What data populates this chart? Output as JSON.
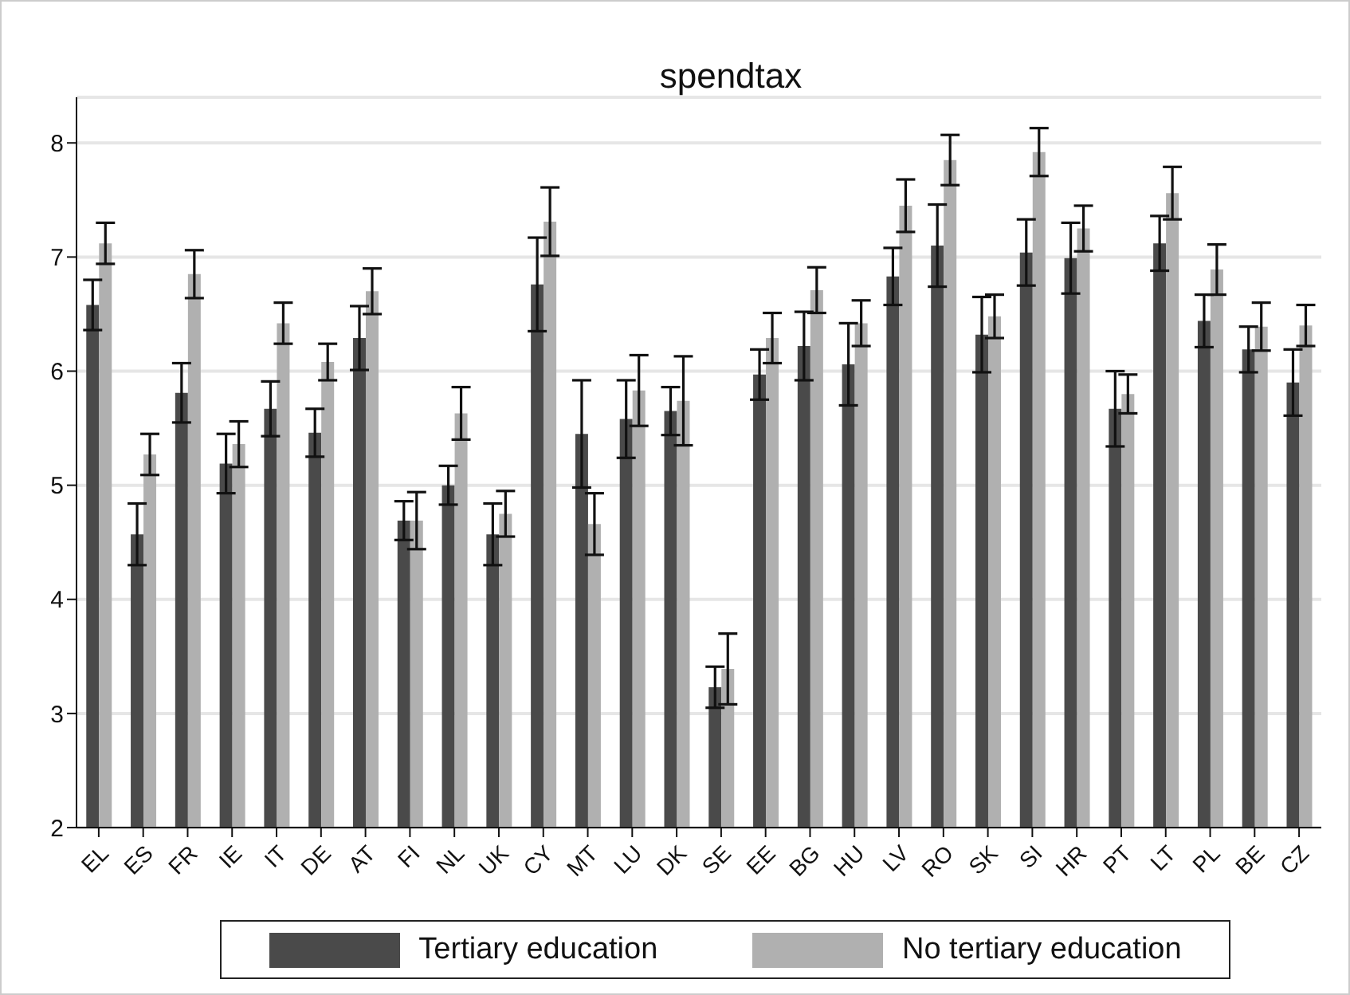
{
  "chart_data": {
    "type": "bar",
    "title": "spendtax",
    "categories": [
      "EL",
      "ES",
      "FR",
      "IE",
      "IT",
      "DE",
      "AT",
      "FI",
      "NL",
      "UK",
      "CY",
      "MT",
      "LU",
      "DK",
      "SE",
      "EE",
      "BG",
      "HU",
      "LV",
      "RO",
      "SK",
      "SI",
      "HR",
      "PT",
      "LT",
      "PL",
      "BE",
      "CZ"
    ],
    "series": [
      {
        "name": "Tertiary education",
        "color": "#4a4a4a",
        "values": [
          6.58,
          4.57,
          5.81,
          5.19,
          5.67,
          5.46,
          6.29,
          4.69,
          5.0,
          4.57,
          6.76,
          5.45,
          5.58,
          5.65,
          3.23,
          5.97,
          6.22,
          6.06,
          6.83,
          7.1,
          6.32,
          7.04,
          6.99,
          5.67,
          7.12,
          6.44,
          6.19,
          5.9
        ],
        "errors": [
          0.22,
          0.27,
          0.26,
          0.26,
          0.24,
          0.21,
          0.28,
          0.17,
          0.17,
          0.27,
          0.41,
          0.47,
          0.34,
          0.21,
          0.18,
          0.22,
          0.3,
          0.36,
          0.25,
          0.36,
          0.33,
          0.29,
          0.31,
          0.33,
          0.24,
          0.23,
          0.2,
          0.29
        ]
      },
      {
        "name": "No tertiary education",
        "color": "#b0b0b0",
        "values": [
          7.12,
          5.27,
          6.85,
          5.36,
          6.42,
          6.08,
          6.7,
          4.69,
          5.63,
          4.75,
          7.31,
          4.66,
          5.83,
          5.74,
          3.39,
          6.29,
          6.71,
          6.42,
          7.45,
          7.85,
          6.48,
          7.92,
          7.25,
          5.8,
          7.56,
          6.89,
          6.39,
          6.4
        ],
        "errors": [
          0.18,
          0.18,
          0.21,
          0.2,
          0.18,
          0.16,
          0.2,
          0.25,
          0.23,
          0.2,
          0.3,
          0.27,
          0.31,
          0.39,
          0.31,
          0.22,
          0.2,
          0.2,
          0.23,
          0.22,
          0.19,
          0.21,
          0.2,
          0.17,
          0.23,
          0.22,
          0.21,
          0.18
        ]
      }
    ],
    "ylim": [
      2,
      8.4
    ],
    "yticks": [
      2,
      3,
      4,
      5,
      6,
      7,
      8
    ],
    "grid": "y",
    "legend": "bottom"
  }
}
